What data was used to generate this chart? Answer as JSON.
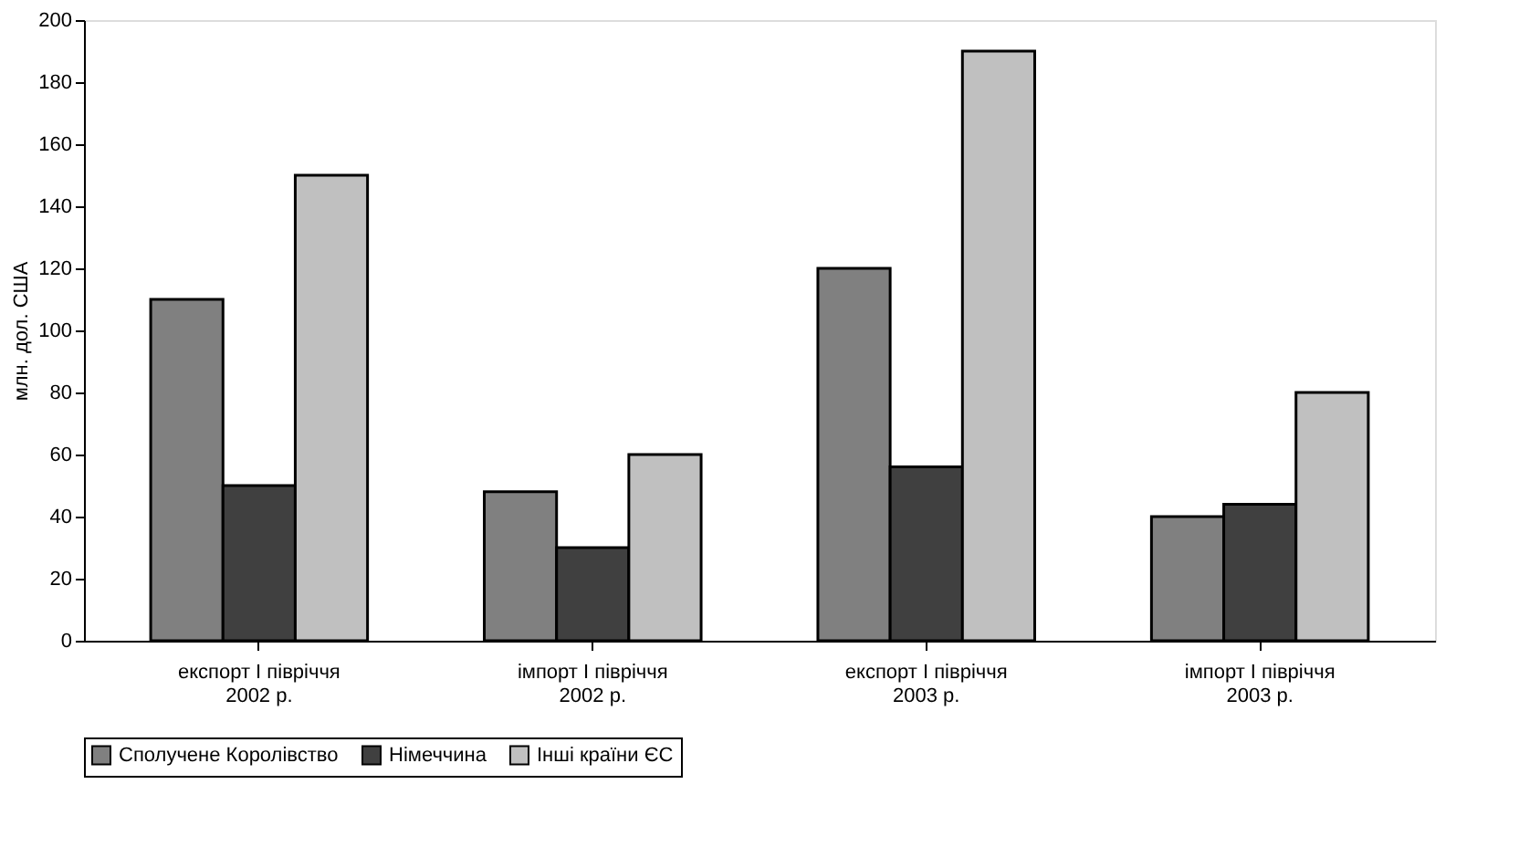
{
  "chart_data": {
    "type": "bar",
    "ylabel": "млн. дол. США",
    "categories": [
      "експорт І півріччя\n2002 р.",
      "імпорт І півріччя\n2002 р.",
      "експорт І півріччя\n2003 р.",
      "імпорт І півріччя\n2003 р."
    ],
    "series": [
      {
        "name": "Сполучене Королівство",
        "color": "#808080",
        "values": [
          110,
          48,
          120,
          40
        ]
      },
      {
        "name": "Німеччина",
        "color": "#404040",
        "values": [
          50,
          30,
          56,
          44
        ]
      },
      {
        "name": "Інші країни ЄС",
        "color": "#c0c0c0",
        "values": [
          150,
          60,
          190,
          80
        ]
      }
    ],
    "ylim": [
      0,
      200
    ],
    "yticks": [
      0,
      20,
      40,
      60,
      80,
      100,
      120,
      140,
      160,
      180,
      200
    ],
    "grid": false,
    "legend": "bottom"
  }
}
